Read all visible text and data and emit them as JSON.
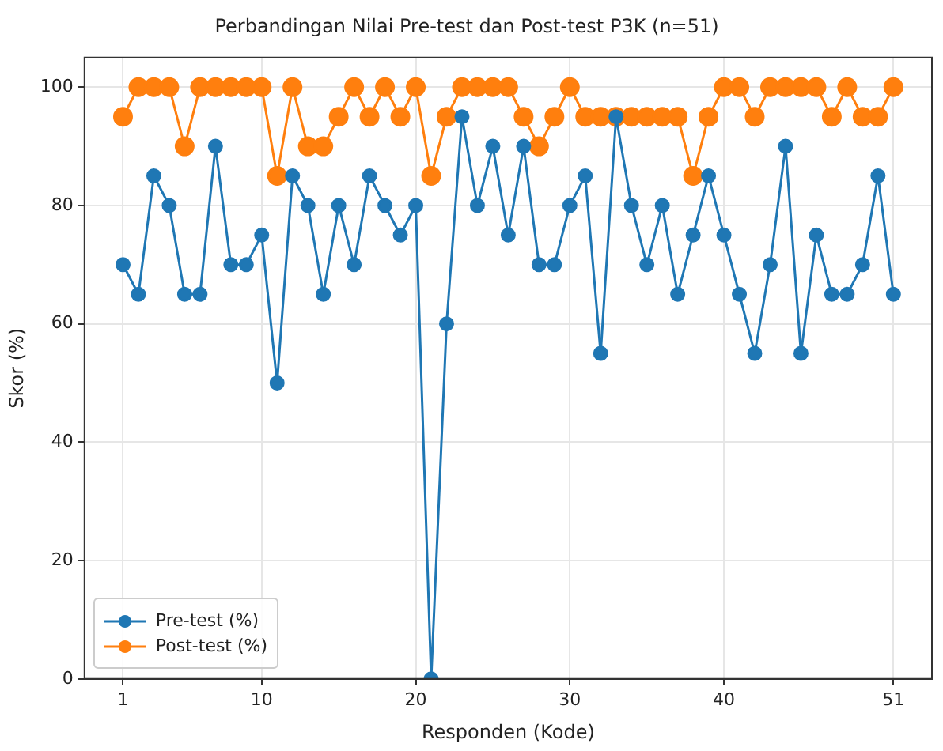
{
  "chart_data": {
    "type": "line",
    "title": "Perbandingan Nilai Pre-test dan Post-test P3K (n=51)",
    "xlabel": "Responden (Kode)",
    "ylabel": "Skor (%)",
    "x": [
      1,
      2,
      3,
      4,
      5,
      6,
      7,
      8,
      9,
      10,
      11,
      12,
      13,
      14,
      15,
      16,
      17,
      18,
      19,
      20,
      21,
      22,
      23,
      24,
      25,
      26,
      27,
      28,
      29,
      30,
      31,
      32,
      33,
      34,
      35,
      36,
      37,
      38,
      39,
      40,
      41,
      42,
      43,
      44,
      45,
      46,
      47,
      48,
      49,
      50,
      51
    ],
    "series": [
      {
        "name": "Pre-test (%)",
        "color": "#1f77b4",
        "values": [
          70,
          65,
          85,
          80,
          65,
          65,
          90,
          70,
          70,
          75,
          50,
          85,
          80,
          65,
          80,
          70,
          85,
          80,
          75,
          80,
          0,
          60,
          95,
          80,
          90,
          75,
          90,
          70,
          70,
          80,
          85,
          55,
          95,
          80,
          70,
          80,
          65,
          75,
          85,
          75,
          65,
          55,
          70,
          90,
          55,
          75,
          65,
          65,
          70,
          85,
          65
        ]
      },
      {
        "name": "Post-test (%)",
        "color": "#ff7f0e",
        "values": [
          95,
          100,
          100,
          100,
          90,
          100,
          100,
          100,
          100,
          100,
          85,
          100,
          90,
          90,
          95,
          100,
          95,
          100,
          95,
          100,
          85,
          95,
          100,
          100,
          100,
          100,
          95,
          90,
          95,
          100,
          95,
          95,
          95,
          95,
          95,
          95,
          95,
          85,
          95,
          100,
          100,
          95,
          100,
          100,
          100,
          100,
          95,
          100,
          95,
          95,
          100
        ]
      }
    ],
    "xlim": [
      -1.5,
      53.5
    ],
    "xticks": [
      1,
      10,
      20,
      30,
      40,
      51
    ],
    "ylim": [
      0,
      105
    ],
    "yticks": [
      0,
      20,
      40,
      60,
      80,
      100
    ],
    "grid": true,
    "legend": "bottom left",
    "marker": "circle",
    "line_style": "solid"
  }
}
